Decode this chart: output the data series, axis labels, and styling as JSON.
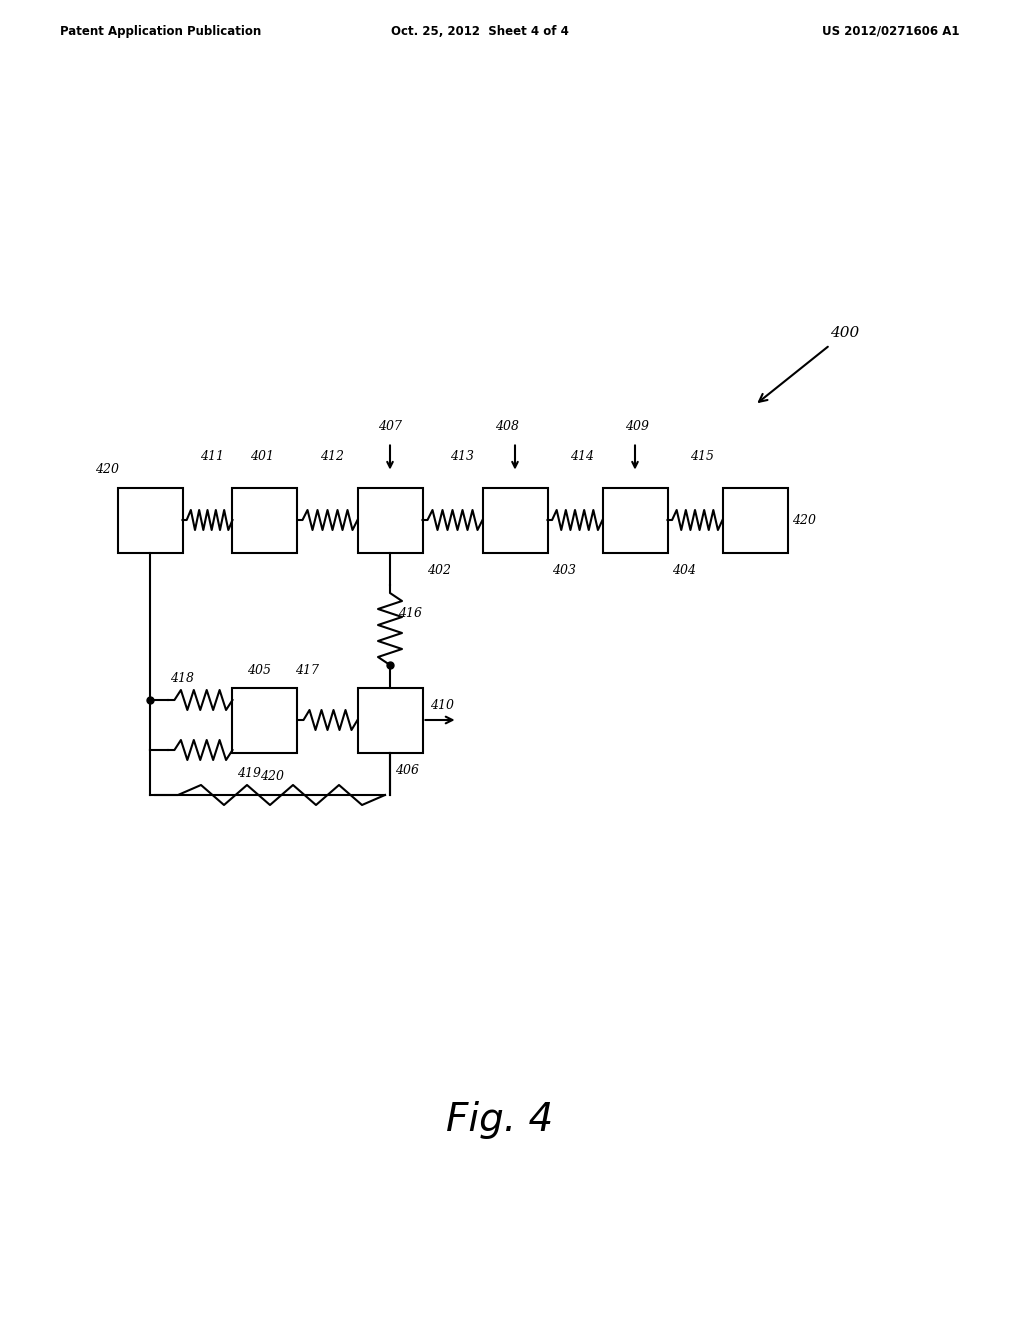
{
  "title": "Fig. 4",
  "header_left": "Patent Application Publication",
  "header_center": "Oct. 25, 2012  Sheet 4 of 4",
  "header_right": "US 2012/0271606 A1",
  "bg_color": "#ffffff",
  "fig_label": "400",
  "box_color": "#ffffff",
  "box_edge": "#000000",
  "line_color": "#000000",
  "labels": {
    "420_topleft": "420",
    "411": "411",
    "401": "401",
    "412": "412",
    "407": "407",
    "413": "413",
    "408": "408",
    "414": "414",
    "409": "409",
    "415": "415",
    "420_topright": "420",
    "402": "402",
    "403": "403",
    "404": "404",
    "416": "416",
    "417": "417",
    "405": "405",
    "418": "418",
    "419": "419",
    "410": "410",
    "406": "406",
    "420_bottom": "420"
  }
}
